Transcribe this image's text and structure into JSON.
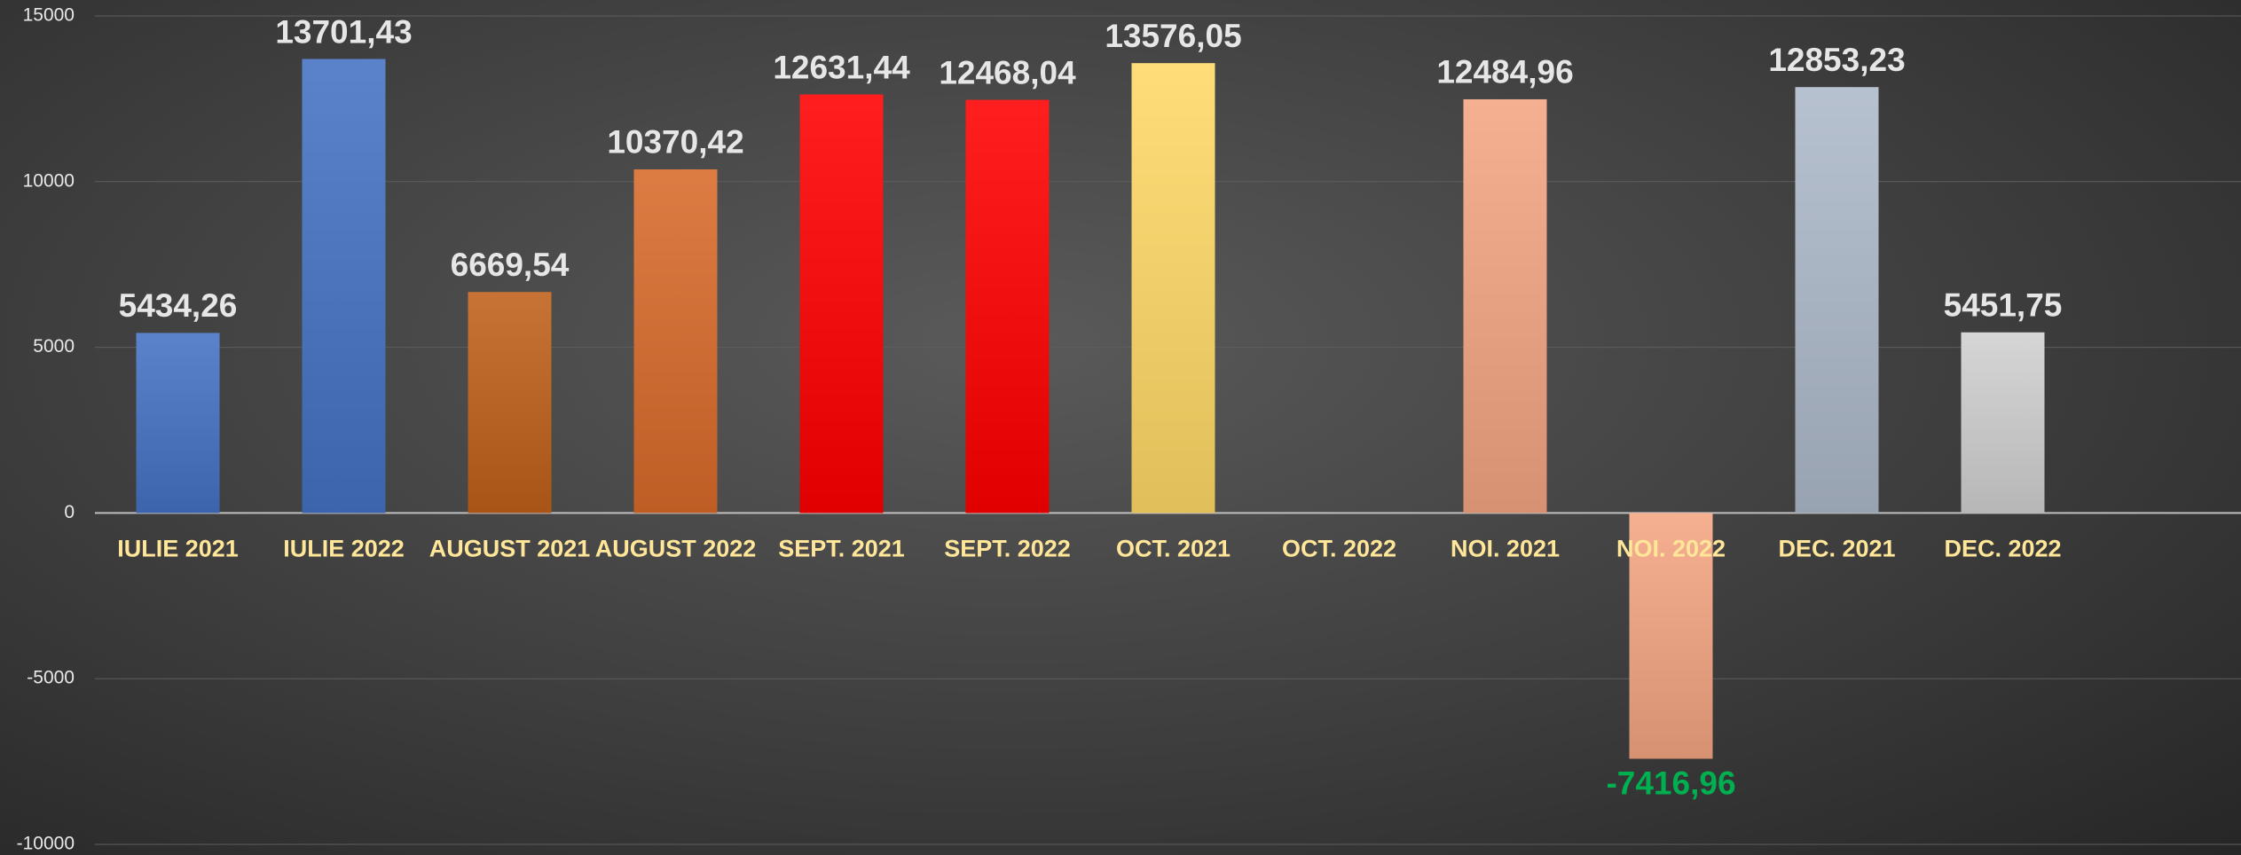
{
  "chart_data": {
    "type": "bar",
    "categories": [
      "IULIE 2021",
      "IULIE 2022",
      "AUGUST 2021",
      "AUGUST 2022",
      "SEPT. 2021",
      "SEPT. 2022",
      "OCT. 2021",
      "OCT. 2022",
      "NOI. 2021",
      "NOI. 2022",
      "DEC. 2021",
      "DEC. 2022"
    ],
    "values": [
      5434.26,
      13701.43,
      6669.54,
      10370.42,
      12631.44,
      12468.04,
      13576.05,
      null,
      12484.96,
      -7416.96,
      12853.23,
      5451.75
    ],
    "value_labels": [
      "5434,26",
      "13701,43",
      "6669,54",
      "10370,42",
      "12631,44",
      "12468,04",
      "13576,05",
      null,
      "12484,96",
      "-7416,96",
      "12853,23",
      "5451,75"
    ],
    "colors": [
      "#4472c4",
      "#4472c4",
      "#c0601a",
      "#d86a2a",
      "#ff0000",
      "#ff0000",
      "#ffd966",
      "#f4a582",
      "#f4a582",
      "#f4a582",
      "#adb9ca",
      "#d0d0d0"
    ],
    "negative_label_color": "#00b050",
    "ylim": [
      -10000,
      15000
    ],
    "yticks": [
      15000,
      10000,
      5000,
      0,
      -5000,
      -10000
    ],
    "grid": true
  }
}
